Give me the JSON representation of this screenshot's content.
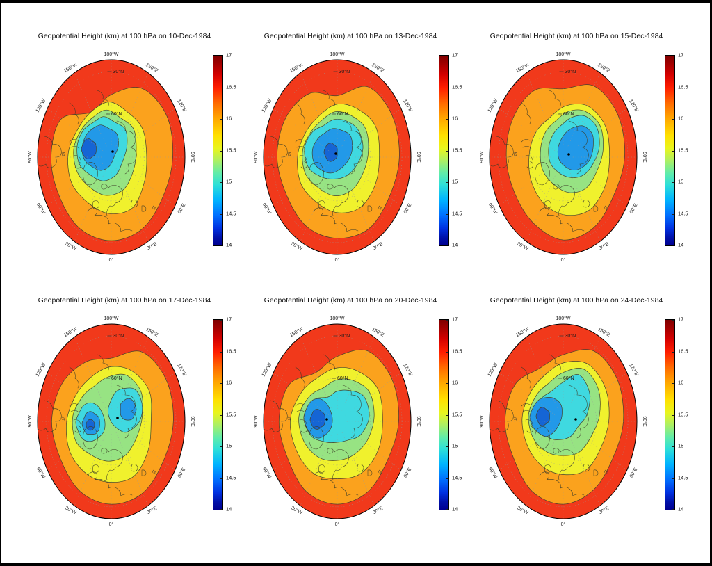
{
  "figure": {
    "background": "#ffffff",
    "frame_color": "#000000",
    "title_prefix": "Geopotential Height (km) at 100 hPa on"
  },
  "panels": [
    {
      "date": "10-Dec-1984",
      "title": "Geopotential Height (km) at 100 hPa on 10-Dec-1984"
    },
    {
      "date": "13-Dec-1984",
      "title": "Geopotential Height (km) at 100 hPa on 13-Dec-1984"
    },
    {
      "date": "15-Dec-1984",
      "title": "Geopotential Height (km) at 100 hPa on 15-Dec-1984"
    },
    {
      "date": "17-Dec-1984",
      "title": "Geopotential Height (km) at 100 hPa on 17-Dec-1984"
    },
    {
      "date": "20-Dec-1984",
      "title": "Geopotential Height (km) at 100 hPa on 20-Dec-1984"
    },
    {
      "date": "24-Dec-1984",
      "title": "Geopotential Height (km) at 100 hPa on 24-Dec-1984"
    }
  ],
  "colorbar": {
    "min": 14,
    "max": 17,
    "ticks_top_to_bottom": [
      "17",
      "16.5",
      "16",
      "15.5",
      "15",
      "14.5",
      "14"
    ]
  },
  "map": {
    "longitude_labels": [
      {
        "text": "180°W",
        "angle": 0
      },
      {
        "text": "150°E",
        "angle": 30
      },
      {
        "text": "120°E",
        "angle": 60
      },
      {
        "text": "90°E",
        "angle": 90
      },
      {
        "text": "60°E",
        "angle": 120
      },
      {
        "text": "30°E",
        "angle": 150
      },
      {
        "text": "0°",
        "angle": 180
      },
      {
        "text": "30°W",
        "angle": 210
      },
      {
        "text": "60°W",
        "angle": 240
      },
      {
        "text": "90°W",
        "angle": 270
      },
      {
        "text": "120°W",
        "angle": 300
      },
      {
        "text": "150°W",
        "angle": 330
      }
    ],
    "latitude_labels": [
      "30°N",
      "60°N"
    ],
    "contour_inline_labels": [
      "15",
      "16"
    ]
  },
  "colors": {
    "bands": {
      "red": "#f1391b",
      "orange": "#fba21d",
      "yellow": "#f0f12d",
      "green": "#97e383",
      "cyan": "#3fd9e0",
      "blue": "#2299e8",
      "navy": "#1565d5"
    },
    "contour_line": "#42422e",
    "coastline": "#3c3c28",
    "graticule": "#9a9a9a",
    "map_outline": "#000000",
    "label_color": "#1a1a1a"
  },
  "chart_data": [
    {
      "type": "heatmap",
      "title": "Geopotential Height (km) at 100 hPa on 10-Dec-1984",
      "variable": "Geopotential Height",
      "units": "km",
      "pressure_level": "100 hPa",
      "date": "10-Dec-1984",
      "projection": "polar stereographic, Northern Hemisphere",
      "contour_levels": [
        14,
        14.5,
        15,
        15.5,
        16,
        16.5,
        17
      ],
      "colormap": "jet",
      "colorbar_range": [
        14,
        17
      ],
      "colorbar_ticks": [
        17,
        16.5,
        16,
        15.5,
        15,
        14.5,
        14
      ],
      "latitude_circles": [
        "30°N",
        "60°N"
      ],
      "low_region": "closed low (~14-14.5 km) centered between Greenland and the pole",
      "high_band": "16.5-17 km ring at the outer low-latitude edge"
    },
    {
      "type": "heatmap",
      "title": "Geopotential Height (km) at 100 hPa on 13-Dec-1984",
      "variable": "Geopotential Height",
      "units": "km",
      "pressure_level": "100 hPa",
      "date": "13-Dec-1984",
      "projection": "polar stereographic, Northern Hemisphere",
      "contour_levels": [
        14,
        14.5,
        15,
        15.5,
        16,
        16.5,
        17
      ],
      "colormap": "jet",
      "colorbar_range": [
        14,
        17
      ],
      "colorbar_ticks": [
        17,
        16.5,
        16,
        15.5,
        15,
        14.5,
        14
      ],
      "latitude_circles": [
        "30°N",
        "60°N"
      ],
      "low_region": "low centered near the pole, slightly toward Greenland",
      "high_band": "16.5-17 km ring at the outer low-latitude edge"
    },
    {
      "type": "heatmap",
      "title": "Geopotential Height (km) at 100 hPa on 15-Dec-1984",
      "variable": "Geopotential Height",
      "units": "km",
      "pressure_level": "100 hPa",
      "date": "15-Dec-1984",
      "projection": "polar stereographic, Northern Hemisphere",
      "contour_levels": [
        14,
        14.5,
        15,
        15.5,
        16,
        16.5,
        17
      ],
      "colormap": "jet",
      "colorbar_range": [
        14,
        17
      ],
      "colorbar_ticks": [
        17,
        16.5,
        16,
        15.5,
        15,
        14.5,
        14
      ],
      "latitude_circles": [
        "30°N",
        "60°N"
      ],
      "low_region": "low displaced toward the Siberian side of the pole",
      "high_band": "16.5-17 km ring at the outer low-latitude edge"
    },
    {
      "type": "heatmap",
      "title": "Geopotential Height (km) at 100 hPa on 17-Dec-1984",
      "variable": "Geopotential Height",
      "units": "km",
      "pressure_level": "100 hPa",
      "date": "17-Dec-1984",
      "projection": "polar stereographic, Northern Hemisphere",
      "contour_levels": [
        14,
        14.5,
        15,
        15.5,
        16,
        16.5,
        17
      ],
      "colormap": "jet",
      "colorbar_range": [
        14,
        17
      ],
      "colorbar_ticks": [
        17,
        16.5,
        16,
        15.5,
        15,
        14.5,
        14
      ],
      "latitude_circles": [
        "30°N",
        "60°N"
      ],
      "low_region": "two low lobes: one over the Canadian Arctic/Greenland, one over Siberia",
      "high_band": "16.5-17 km ring at the outer low-latitude edge"
    },
    {
      "type": "heatmap",
      "title": "Geopotential Height (km) at 100 hPa on 20-Dec-1984",
      "variable": "Geopotential Height",
      "units": "km",
      "pressure_level": "100 hPa",
      "date": "20-Dec-1984",
      "projection": "polar stereographic, Northern Hemisphere",
      "contour_levels": [
        14,
        14.5,
        15,
        15.5,
        16,
        16.5,
        17
      ],
      "colormap": "jet",
      "colorbar_range": [
        14,
        17
      ],
      "colorbar_ticks": [
        17,
        16.5,
        16,
        15.5,
        15,
        14.5,
        14
      ],
      "latitude_circles": [
        "30°N",
        "60°N"
      ],
      "low_region": "deep low over Greenland with a broad trough stretching across the pole toward Siberia",
      "high_band": "16.5-17 km ring at the outer low-latitude edge"
    },
    {
      "type": "heatmap",
      "title": "Geopotential Height (km) at 100 hPa on 24-Dec-1984",
      "variable": "Geopotential Height",
      "units": "km",
      "pressure_level": "100 hPa",
      "date": "24-Dec-1984",
      "projection": "polar stereographic, Northern Hemisphere",
      "contour_levels": [
        14,
        14.5,
        15,
        15.5,
        16,
        16.5,
        17
      ],
      "colormap": "jet",
      "colorbar_range": [
        14,
        17
      ],
      "colorbar_ticks": [
        17,
        16.5,
        16,
        15.5,
        15,
        14.5,
        14
      ],
      "latitude_circles": [
        "30°N",
        "60°N"
      ],
      "low_region": "low over the Canadian Arctic/Greenland with a cold tongue extending to upper-right over Siberia",
      "high_band": "16.5-17 km ring at the outer low-latitude edge"
    }
  ]
}
